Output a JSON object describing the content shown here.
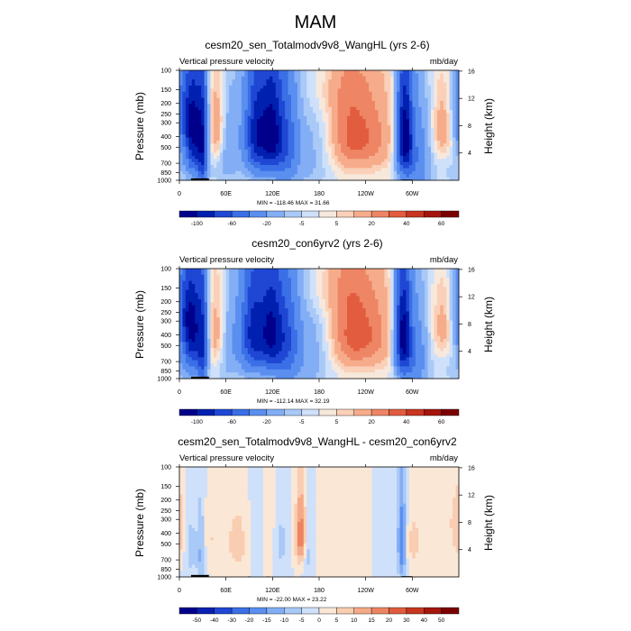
{
  "page": {
    "title": "MAM"
  },
  "palettes": {
    "full": [
      "#00008b",
      "#0020b0",
      "#1f47d4",
      "#3a6fe6",
      "#5a8ff0",
      "#83aef5",
      "#a9c9f7",
      "#cfe0fa",
      "#f7e8dc",
      "#fbd0b8",
      "#f6ac8a",
      "#ee8564",
      "#e25c3f",
      "#c83520",
      "#a4160c",
      "#7a0000"
    ],
    "diff": [
      "#00008b",
      "#0a20b0",
      "#1f47d4",
      "#3a6fe6",
      "#5a8ff0",
      "#83aef5",
      "#a9c9f7",
      "#cfe0fa",
      "#fbe7d6",
      "#f9cdb1",
      "#f4a987",
      "#ec8462",
      "#df5b3d",
      "#c7361f",
      "#a4170c",
      "#7a0000"
    ]
  },
  "chart_data": [
    {
      "type": "heatmap",
      "title": "cesm20_sen_Totalmodv9v8_WangHL (yrs 2-6)",
      "left_label": "Vertical pressure velocity",
      "right_label": "mb/day",
      "ylabel": "Pressure (mb)",
      "ylabel_right": "Height (km)",
      "x_ticks": [
        "0",
        "60E",
        "120E",
        "180",
        "120W",
        "60W"
      ],
      "x_tick_values": [
        0,
        60,
        120,
        180,
        240,
        300
      ],
      "xlim": [
        0,
        360
      ],
      "y_ticks": [
        "100",
        "150",
        "200",
        "250",
        "300",
        "400",
        "500",
        "700",
        "850",
        "1000"
      ],
      "y_tick_values": [
        100,
        150,
        200,
        250,
        300,
        400,
        500,
        700,
        850,
        1000
      ],
      "ylim": [
        100,
        1000
      ],
      "right_ticks": [
        "4",
        "8",
        "12",
        "16"
      ],
      "right_tick_values": [
        4,
        8,
        12,
        16
      ],
      "minmax": "MIN = -118.46   MAX = 31.66",
      "min": -118.46,
      "max": 31.66,
      "colorbar_labels": [
        "-100",
        "-60",
        "-20",
        "-5",
        "5",
        "20",
        "40",
        "60"
      ],
      "colorbar_levels": [
        -120,
        -100,
        -80,
        -60,
        -40,
        -20,
        -10,
        -5,
        0,
        5,
        10,
        20,
        30,
        40,
        50,
        60
      ],
      "palette": "full",
      "features": [
        {
          "lon": 20,
          "p": 400,
          "w": 9,
          "h": 420,
          "v": -95
        },
        {
          "lon": 8,
          "p": 250,
          "w": 10,
          "h": 200,
          "v": -45
        },
        {
          "lon": 30,
          "p": 600,
          "w": 4,
          "h": 700,
          "v": -55
        },
        {
          "lon": 48,
          "p": 350,
          "w": 8,
          "h": 320,
          "v": 28
        },
        {
          "lon": 60,
          "p": 500,
          "w": 14,
          "h": 500,
          "v": -20
        },
        {
          "lon": 100,
          "p": 380,
          "w": 11,
          "h": 420,
          "v": -95
        },
        {
          "lon": 120,
          "p": 380,
          "w": 9,
          "h": 420,
          "v": -90
        },
        {
          "lon": 138,
          "p": 450,
          "w": 10,
          "h": 500,
          "v": -50
        },
        {
          "lon": 165,
          "p": 600,
          "w": 20,
          "h": 700,
          "v": -12
        },
        {
          "lon": 200,
          "p": 150,
          "w": 30,
          "h": 120,
          "v": 8
        },
        {
          "lon": 240,
          "p": 400,
          "w": 24,
          "h": 350,
          "v": 28
        },
        {
          "lon": 215,
          "p": 400,
          "w": 15,
          "h": 350,
          "v": 14
        },
        {
          "lon": 290,
          "p": 400,
          "w": 7,
          "h": 420,
          "v": -110
        },
        {
          "lon": 305,
          "p": 650,
          "w": 12,
          "h": 600,
          "v": -35
        },
        {
          "lon": 340,
          "p": 350,
          "w": 10,
          "h": 280,
          "v": 22
        },
        {
          "lon": 350,
          "p": 500,
          "w": 16,
          "h": 700,
          "v": -8
        }
      ]
    },
    {
      "type": "heatmap",
      "title": "cesm20_con6yrv2 (yrs 2-6)",
      "left_label": "Vertical pressure velocity",
      "right_label": "mb/day",
      "ylabel": "Pressure (mb)",
      "ylabel_right": "Height (km)",
      "x_ticks": [
        "0",
        "60E",
        "120E",
        "180",
        "120W",
        "60W"
      ],
      "x_tick_values": [
        0,
        60,
        120,
        180,
        240,
        300
      ],
      "xlim": [
        0,
        360
      ],
      "y_ticks": [
        "100",
        "150",
        "200",
        "250",
        "300",
        "400",
        "500",
        "700",
        "850",
        "1000"
      ],
      "y_tick_values": [
        100,
        150,
        200,
        250,
        300,
        400,
        500,
        700,
        850,
        1000
      ],
      "ylim": [
        100,
        1000
      ],
      "right_ticks": [
        "4",
        "8",
        "12",
        "16"
      ],
      "right_tick_values": [
        4,
        8,
        12,
        16
      ],
      "minmax": "MIN = -112.14   MAX = 32.19",
      "min": -112.14,
      "max": 32.19,
      "colorbar_labels": [
        "-100",
        "-60",
        "-20",
        "-5",
        "5",
        "20",
        "40",
        "60"
      ],
      "colorbar_levels": [
        -120,
        -100,
        -80,
        -60,
        -40,
        -20,
        -10,
        -5,
        0,
        5,
        10,
        20,
        30,
        40,
        50,
        60
      ],
      "palette": "full",
      "features": [
        {
          "lon": 18,
          "p": 400,
          "w": 10,
          "h": 420,
          "v": -90
        },
        {
          "lon": 8,
          "p": 250,
          "w": 10,
          "h": 200,
          "v": -40
        },
        {
          "lon": 30,
          "p": 600,
          "w": 4,
          "h": 700,
          "v": -50
        },
        {
          "lon": 48,
          "p": 400,
          "w": 9,
          "h": 360,
          "v": 25
        },
        {
          "lon": 62,
          "p": 500,
          "w": 14,
          "h": 500,
          "v": -20
        },
        {
          "lon": 95,
          "p": 380,
          "w": 11,
          "h": 420,
          "v": -85
        },
        {
          "lon": 118,
          "p": 380,
          "w": 10,
          "h": 420,
          "v": -90
        },
        {
          "lon": 138,
          "p": 450,
          "w": 11,
          "h": 500,
          "v": -55
        },
        {
          "lon": 165,
          "p": 600,
          "w": 20,
          "h": 700,
          "v": -15
        },
        {
          "lon": 200,
          "p": 150,
          "w": 30,
          "h": 120,
          "v": 10
        },
        {
          "lon": 240,
          "p": 400,
          "w": 24,
          "h": 350,
          "v": 30
        },
        {
          "lon": 215,
          "p": 400,
          "w": 15,
          "h": 350,
          "v": 14
        },
        {
          "lon": 288,
          "p": 400,
          "w": 7,
          "h": 420,
          "v": -105
        },
        {
          "lon": 302,
          "p": 650,
          "w": 12,
          "h": 600,
          "v": -35
        },
        {
          "lon": 340,
          "p": 350,
          "w": 10,
          "h": 280,
          "v": 20
        },
        {
          "lon": 350,
          "p": 500,
          "w": 16,
          "h": 700,
          "v": -8
        }
      ]
    },
    {
      "type": "heatmap",
      "title": "cesm20_sen_Totalmodv9v8_WangHL - cesm20_con6yrv2",
      "left_label": "Vertical pressure velocity",
      "right_label": "mb/day",
      "ylabel": "Pressure (mb)",
      "ylabel_right": "Height (km)",
      "x_ticks": [
        "0",
        "60E",
        "120E",
        "180",
        "120W",
        "60W"
      ],
      "x_tick_values": [
        0,
        60,
        120,
        180,
        240,
        300
      ],
      "xlim": [
        0,
        360
      ],
      "y_ticks": [
        "100",
        "150",
        "200",
        "250",
        "300",
        "400",
        "500",
        "700",
        "850",
        "1000"
      ],
      "y_tick_values": [
        100,
        150,
        200,
        250,
        300,
        400,
        500,
        700,
        850,
        1000
      ],
      "ylim": [
        100,
        1000
      ],
      "right_ticks": [
        "4",
        "8",
        "12",
        "16"
      ],
      "right_tick_values": [
        4,
        8,
        12,
        16
      ],
      "minmax": "MIN = -22.00   MAX = 23.22",
      "min": -22.0,
      "max": 23.22,
      "colorbar_labels": [
        "-50",
        "-40",
        "-30",
        "-20",
        "-15",
        "-10",
        "-5",
        "0",
        "5",
        "10",
        "15",
        "20",
        "30",
        "40",
        "50"
      ],
      "colorbar_levels": [
        -60,
        -50,
        -40,
        -30,
        -20,
        -15,
        -10,
        -5,
        0,
        5,
        10,
        15,
        20,
        30,
        40,
        50
      ],
      "palette": "diff",
      "features": [
        {
          "lon": 0,
          "p": 400,
          "w": 6,
          "h": 300,
          "v": 8
        },
        {
          "lon": 14,
          "p": 550,
          "w": 6,
          "h": 400,
          "v": -8
        },
        {
          "lon": 28,
          "p": 600,
          "w": 4,
          "h": 500,
          "v": -12
        },
        {
          "lon": 40,
          "p": 450,
          "w": 10,
          "h": 300,
          "v": 5
        },
        {
          "lon": 75,
          "p": 500,
          "w": 12,
          "h": 400,
          "v": 7
        },
        {
          "lon": 100,
          "p": 450,
          "w": 8,
          "h": 400,
          "v": -6
        },
        {
          "lon": 115,
          "p": 450,
          "w": 8,
          "h": 400,
          "v": 6
        },
        {
          "lon": 130,
          "p": 500,
          "w": 8,
          "h": 400,
          "v": -7
        },
        {
          "lon": 157,
          "p": 430,
          "w": 5,
          "h": 320,
          "v": 22
        },
        {
          "lon": 165,
          "p": 550,
          "w": 6,
          "h": 400,
          "v": -10
        },
        {
          "lon": 200,
          "p": 500,
          "w": 20,
          "h": 400,
          "v": 5
        },
        {
          "lon": 270,
          "p": 450,
          "w": 10,
          "h": 400,
          "v": -5
        },
        {
          "lon": 287,
          "p": 500,
          "w": 4,
          "h": 500,
          "v": -22
        },
        {
          "lon": 300,
          "p": 500,
          "w": 12,
          "h": 400,
          "v": 6
        },
        {
          "lon": 340,
          "p": 300,
          "w": 15,
          "h": 250,
          "v": 4
        }
      ]
    }
  ]
}
